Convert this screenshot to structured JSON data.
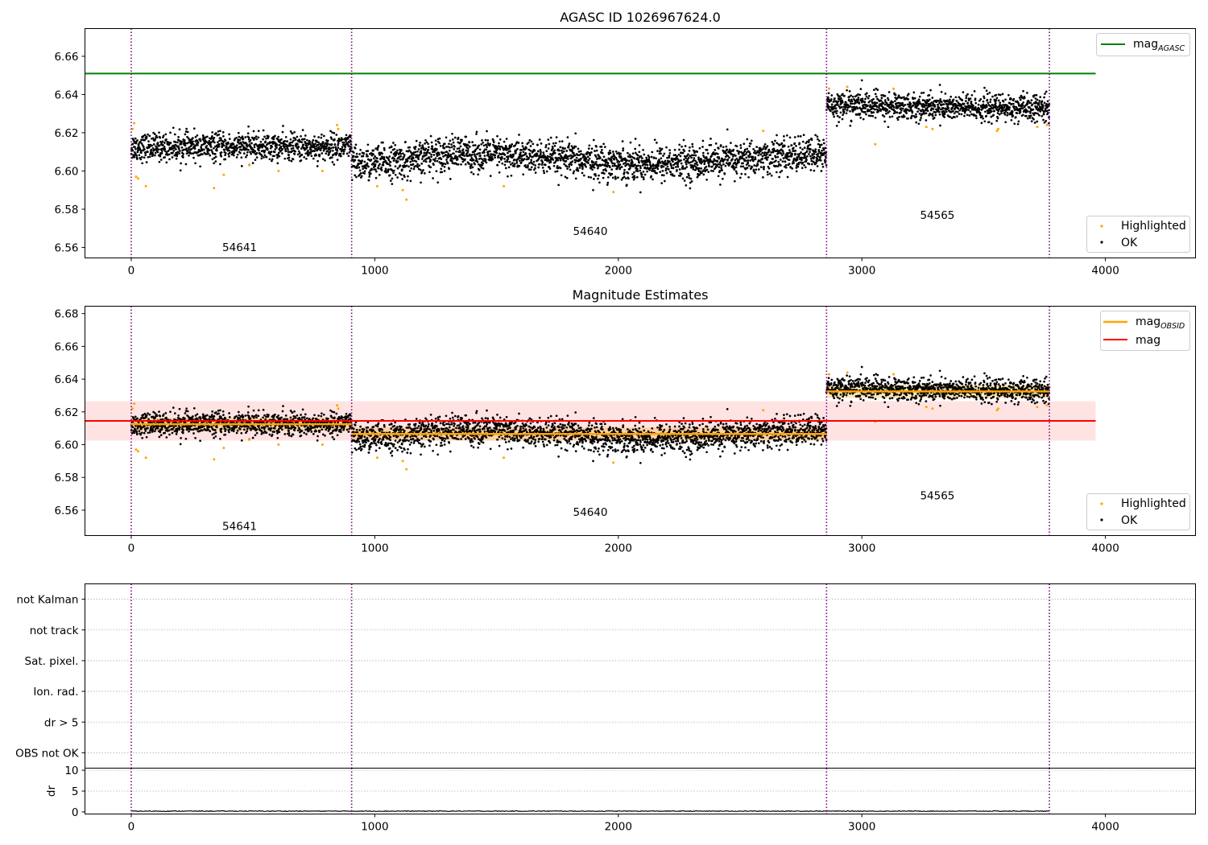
{
  "chart_data": [
    {
      "id": "agasc",
      "type": "scatter",
      "title": "AGASC ID 1026967624.0",
      "xlim": [
        -190,
        4370
      ],
      "ylim": [
        6.5545,
        6.6745
      ],
      "xticks": [
        0,
        1000,
        2000,
        3000,
        4000
      ],
      "yticks": [
        6.56,
        6.58,
        6.6,
        6.62,
        6.64,
        6.66
      ],
      "y_decimals": 2,
      "hlines": [
        {
          "name": "mag",
          "sub": "AGASC",
          "y": 6.651,
          "x": [
            -190,
            3960
          ],
          "color": "#008000"
        }
      ],
      "legend_lines": [
        {
          "label": "mag",
          "sub": "AGASC",
          "color": "#008000"
        }
      ],
      "legend_points": [
        {
          "label": "Highlighted",
          "color": "#ffa500"
        },
        {
          "label": "OK",
          "color": "#000000"
        }
      ],
      "segments": [
        {
          "obsid": "54641",
          "x": [
            0,
            905
          ],
          "mean": 6.6125,
          "sd": 0.0035,
          "label_pos": [
            445,
            6.558
          ]
        },
        {
          "obsid": "54640",
          "x": [
            905,
            2855
          ],
          "mean": 6.6065,
          "sd": 0.0045,
          "label_pos": [
            1885,
            6.5665
          ]
        },
        {
          "obsid": "54565",
          "x": [
            2855,
            3770
          ],
          "mean": 6.6325,
          "sd": 0.0035,
          "label_pos": [
            3310,
            6.575
          ]
        }
      ],
      "highlighted_points": [
        [
          5,
          6.622
        ],
        [
          12,
          6.625
        ],
        [
          20,
          6.597
        ],
        [
          28,
          6.596
        ],
        [
          60,
          6.592
        ],
        [
          340,
          6.591
        ],
        [
          380,
          6.598
        ],
        [
          485,
          6.603
        ],
        [
          605,
          6.6
        ],
        [
          785,
          6.6
        ],
        [
          845,
          6.624
        ],
        [
          850,
          6.622
        ],
        [
          1010,
          6.592
        ],
        [
          1115,
          6.59
        ],
        [
          1130,
          6.585
        ],
        [
          1530,
          6.592
        ],
        [
          1980,
          6.589
        ],
        [
          2595,
          6.621
        ],
        [
          2865,
          6.643
        ],
        [
          2940,
          6.644
        ],
        [
          3055,
          6.614
        ],
        [
          3130,
          6.643
        ],
        [
          3265,
          6.623
        ],
        [
          3290,
          6.622
        ],
        [
          3555,
          6.621
        ],
        [
          3560,
          6.622
        ],
        [
          3720,
          6.623
        ],
        [
          3760,
          6.624
        ]
      ],
      "vlines": [
        0,
        905,
        2855,
        3770
      ]
    },
    {
      "id": "estimates",
      "type": "scatter",
      "title": "Magnitude Estimates",
      "xlim": [
        -190,
        4370
      ],
      "ylim": [
        6.5445,
        6.6845
      ],
      "xticks": [
        0,
        1000,
        2000,
        3000,
        4000
      ],
      "yticks": [
        6.56,
        6.58,
        6.6,
        6.62,
        6.64,
        6.66,
        6.68
      ],
      "y_decimals": 2,
      "band": {
        "y": [
          6.6025,
          6.6265
        ],
        "x": [
          -190,
          3960
        ],
        "color": "#ff9999"
      },
      "hlines": [
        {
          "name": "mag",
          "sub": "",
          "y": 6.6145,
          "x": [
            -190,
            3960
          ],
          "color": "#ff0000"
        }
      ],
      "legend_lines": [
        {
          "label": "mag",
          "sub": "OBSID",
          "color": "#ffa500"
        },
        {
          "label": "mag",
          "sub": "",
          "color": "#ff0000"
        }
      ],
      "legend_points": [
        {
          "label": "Highlighted",
          "color": "#ffa500"
        },
        {
          "label": "OK",
          "color": "#000000"
        }
      ],
      "segments": [
        {
          "obsid": "54641",
          "x": [
            0,
            905
          ],
          "mean": 6.6125,
          "sd": 0.0035,
          "label_pos": [
            445,
            6.548
          ]
        },
        {
          "obsid": "54640",
          "x": [
            905,
            2855
          ],
          "mean": 6.6065,
          "sd": 0.0045,
          "label_pos": [
            1885,
            6.5565
          ]
        },
        {
          "obsid": "54565",
          "x": [
            2855,
            3770
          ],
          "mean": 6.6325,
          "sd": 0.0035,
          "label_pos": [
            3310,
            6.5665
          ]
        }
      ],
      "highlighted_points": [
        [
          5,
          6.622
        ],
        [
          12,
          6.625
        ],
        [
          20,
          6.597
        ],
        [
          28,
          6.596
        ],
        [
          60,
          6.592
        ],
        [
          340,
          6.591
        ],
        [
          380,
          6.598
        ],
        [
          485,
          6.603
        ],
        [
          605,
          6.6
        ],
        [
          785,
          6.6
        ],
        [
          845,
          6.624
        ],
        [
          850,
          6.622
        ],
        [
          1010,
          6.592
        ],
        [
          1115,
          6.59
        ],
        [
          1130,
          6.585
        ],
        [
          1530,
          6.592
        ],
        [
          1980,
          6.589
        ],
        [
          2595,
          6.621
        ],
        [
          2865,
          6.643
        ],
        [
          2940,
          6.644
        ],
        [
          3055,
          6.614
        ],
        [
          3130,
          6.643
        ],
        [
          3265,
          6.623
        ],
        [
          3290,
          6.622
        ],
        [
          3555,
          6.621
        ],
        [
          3560,
          6.622
        ],
        [
          3720,
          6.623
        ],
        [
          3760,
          6.624
        ]
      ],
      "vlines": [
        0,
        905,
        2855,
        3770
      ]
    },
    {
      "id": "flags",
      "type": "scatter",
      "xlim": [
        -190,
        4370
      ],
      "ylim": [
        -0.5,
        5.5
      ],
      "categories": [
        "not Kalman",
        "not track",
        "Sat. pixel.",
        "Ion. rad.",
        "dr > 5",
        "OBS not OK"
      ],
      "values": [],
      "grid": "horizontal dotted",
      "vlines": [
        0,
        905,
        2855,
        3770
      ]
    },
    {
      "id": "dr",
      "type": "line",
      "ylabel": "dr",
      "xlim": [
        -190,
        4370
      ],
      "ylim": [
        -0.5,
        10.5
      ],
      "xticks": [
        0,
        1000,
        2000,
        3000,
        4000
      ],
      "yticks": [
        0,
        5,
        10
      ],
      "y_decimals": 0,
      "x": [
        0,
        3770
      ],
      "values": [
        0.1,
        0.1
      ],
      "vlines": [
        0,
        905,
        2855,
        3770
      ]
    }
  ]
}
